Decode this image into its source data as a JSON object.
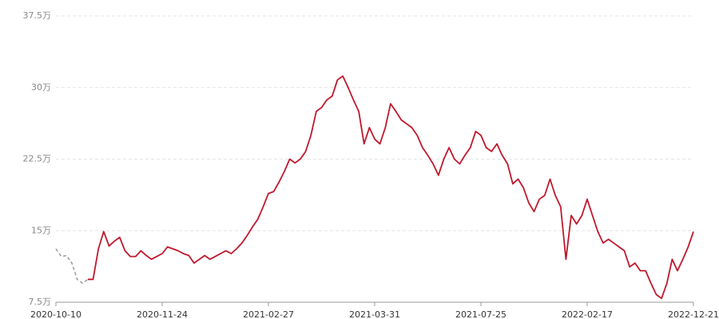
{
  "chart_data": {
    "type": "line",
    "categories": [
      "2020-10-10",
      null,
      null,
      null,
      null,
      null,
      null,
      null,
      null,
      null,
      null,
      null,
      null,
      null,
      null,
      null,
      null,
      null,
      null,
      null,
      "2020-11-24",
      null,
      null,
      null,
      null,
      null,
      null,
      null,
      null,
      null,
      null,
      null,
      null,
      null,
      null,
      null,
      null,
      null,
      null,
      null,
      "2021-02-27",
      null,
      null,
      null,
      null,
      null,
      null,
      null,
      null,
      null,
      null,
      null,
      null,
      null,
      null,
      null,
      null,
      null,
      null,
      null,
      "2021-03-31",
      null,
      null,
      null,
      null,
      null,
      null,
      null,
      null,
      null,
      null,
      null,
      null,
      null,
      null,
      null,
      null,
      null,
      null,
      null,
      "2021-07-25",
      null,
      null,
      null,
      null,
      null,
      null,
      null,
      null,
      null,
      null,
      null,
      null,
      null,
      null,
      null,
      null,
      null,
      null,
      null,
      "2022-02-17",
      null,
      null,
      null,
      null,
      null,
      null,
      null,
      null,
      null,
      null,
      null,
      null,
      null,
      null,
      null,
      null,
      null,
      null,
      null,
      "2022-12-21"
    ],
    "series": [
      {
        "color": "#999999",
        "dashed": true,
        "values": [
          13.1,
          12.3,
          12.4,
          11.6,
          9.9,
          9.5,
          9.9,
          null,
          null,
          null,
          null,
          null,
          null,
          null,
          null,
          null,
          null,
          null,
          null,
          null,
          null,
          null,
          null,
          null,
          null,
          null,
          null,
          null,
          null,
          null,
          null,
          null,
          null,
          null,
          null,
          null,
          null,
          null,
          null,
          null,
          null,
          null,
          null,
          null,
          null,
          null,
          null,
          null,
          null,
          null,
          null,
          null,
          null,
          null,
          null,
          null,
          null,
          null,
          null,
          null,
          null,
          null,
          null,
          null,
          null,
          null,
          null,
          null,
          null,
          null,
          null,
          null,
          null,
          null,
          null,
          null,
          null,
          null,
          null,
          null,
          null,
          null,
          null,
          null,
          null,
          null,
          null,
          null,
          null,
          null,
          null,
          null,
          null,
          null,
          null,
          null,
          null,
          null,
          null,
          null,
          null,
          null,
          null,
          null,
          null,
          null,
          null,
          null,
          null,
          null,
          null,
          null,
          null,
          null,
          null,
          null,
          null,
          null,
          null,
          null,
          null
        ]
      },
      {
        "color": "#c0182c",
        "dashed": false,
        "values": [
          null,
          null,
          null,
          null,
          null,
          null,
          9.9,
          9.9,
          13.1,
          14.9,
          13.4,
          13.9,
          14.3,
          12.9,
          12.3,
          12.3,
          12.9,
          12.4,
          12.0,
          12.3,
          12.6,
          13.3,
          13.1,
          12.9,
          12.6,
          12.4,
          11.6,
          12.0,
          12.4,
          12.0,
          12.3,
          12.6,
          12.9,
          12.6,
          13.1,
          13.7,
          14.5,
          15.4,
          16.2,
          17.5,
          18.9,
          19.1,
          20.1,
          21.2,
          22.5,
          22.1,
          22.5,
          23.3,
          25.0,
          27.5,
          27.9,
          28.7,
          29.1,
          30.8,
          31.2,
          30.0,
          28.7,
          27.5,
          24.1,
          25.8,
          24.6,
          24.1,
          25.8,
          28.3,
          27.5,
          26.6,
          26.2,
          25.8,
          25.0,
          23.7,
          22.9,
          22.0,
          20.8,
          22.5,
          23.7,
          22.5,
          22.0,
          22.9,
          23.7,
          25.4,
          25.0,
          23.7,
          23.3,
          24.1,
          22.9,
          22.0,
          19.9,
          20.4,
          19.5,
          17.9,
          17.0,
          18.3,
          18.7,
          20.4,
          18.7,
          17.5,
          12.0,
          16.6,
          15.7,
          16.6,
          18.3,
          16.6,
          14.9,
          13.7,
          14.1,
          13.7,
          13.3,
          12.9,
          11.2,
          11.6,
          10.8,
          10.8,
          9.5,
          8.3,
          7.9,
          9.5,
          12.0,
          10.8,
          12.0,
          13.3,
          14.9
        ]
      }
    ],
    "ylim": [
      7.5,
      37.5
    ],
    "yticks": [
      {
        "value": 7.5,
        "label": "7.5万"
      },
      {
        "value": 15,
        "label": "15万"
      },
      {
        "value": 22.5,
        "label": "22.5万"
      },
      {
        "value": 30,
        "label": "30万"
      },
      {
        "value": 37.5,
        "label": "37.5万"
      }
    ],
    "grid": true
  }
}
